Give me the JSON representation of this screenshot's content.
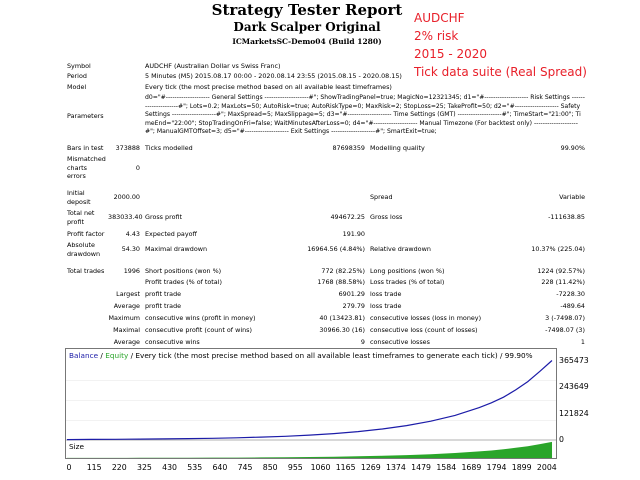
{
  "header": {
    "title": "Strategy Tester Report",
    "subtitle": "Dark Scalper Original",
    "server": "ICMarketsSC-Demo04 (Build 1280)"
  },
  "overlay": [
    "AUDCHF",
    "2% risk",
    "2015 - 2020",
    "Tick data suite (Real Spread)"
  ],
  "info": {
    "symbol_label": "Symbol",
    "symbol": "AUDCHF (Australian Dollar vs Swiss Franc)",
    "period_label": "Period",
    "period": "5 Minutes (M5) 2015.08.17 00:00 - 2020.08.14 23:55 (2015.08.15 - 2020.08.15)",
    "model_label": "Model",
    "model": "Every tick (the most precise method based on all available least timeframes)",
    "parameters_label": "Parameters",
    "parameters": "d0=\"#-------------------- General Settings --------------------#\"; ShowTradingPanel=true; MagicNo=12321345; d1=\"#-------------------- Risk Settings ---------------------#\"; Lots=0.2; MaxLots=50; AutoRisk=true; AutoRiskType=0; MaxRisk=2; StopLoss=25; TakeProfit=50; d2=\"#-------------------- Safety Settings --------------------#\"; MaxSpread=5; MaxSlippage=5; d3=\"#-------------------- Time Settings (GMT) --------------------#\"; TimeStart=\"21:00\"; TimeEnd=\"22:00\"; StopTradingOnFri=false; WaitMinutesAfterLoss=0; d4=\"#-------------------- Manual Timezone (For backtest only) --------------------#\"; ManualGMTOffset=3; d5=\"#-------------------- Exit Settings --------------------#\"; SmartExit=true;",
    "bars_label": "Bars in test",
    "bars": "373888",
    "ticks_label": "Ticks modelled",
    "ticks": "87698359",
    "quality_label": "Modelling quality",
    "quality": "99.90%",
    "mismatch_label": "Mismatched charts errors",
    "mismatch": "0",
    "deposit_label": "Initial deposit",
    "deposit": "2000.00",
    "spread_label": "Spread",
    "spread": "Variable"
  },
  "stats": {
    "net_profit_label": "Total net profit",
    "net_profit": "383033.40",
    "gross_profit_label": "Gross profit",
    "gross_profit": "494672.25",
    "gross_loss_label": "Gross loss",
    "gross_loss": "-111638.85",
    "profit_factor_label": "Profit factor",
    "profit_factor": "4.43",
    "expected_payoff_label": "Expected payoff",
    "expected_payoff": "191.90",
    "abs_dd_label": "Absolute drawdown",
    "abs_dd": "54.30",
    "max_dd_label": "Maximal drawdown",
    "max_dd": "16964.56 (4.84%)",
    "rel_dd_label": "Relative drawdown",
    "rel_dd": "10.37% (225.04)",
    "total_trades_label": "Total trades",
    "total_trades": "1996",
    "short_label": "Short positions (won %)",
    "short": "772 (82.25%)",
    "long_label": "Long positions (won %)",
    "long": "1224 (92.57%)",
    "profit_trades_label": "Profit trades (% of total)",
    "profit_trades": "1768 (88.58%)",
    "loss_trades_label": "Loss trades (% of total)",
    "loss_trades": "228 (11.42%)",
    "largest_label": "Largest",
    "largest_profit_label": "profit trade",
    "largest_profit": "6901.29",
    "largest_loss_label": "loss trade",
    "largest_loss": "-7228.30",
    "average_label": "Average",
    "avg_profit_label": "profit trade",
    "avg_profit": "279.79",
    "avg_loss_label": "loss trade",
    "avg_loss": "-489.64",
    "maximum_label": "Maximum",
    "max_cw_label": "consecutive wins (profit in money)",
    "max_cw": "40 (13423.81)",
    "max_cl_label": "consecutive losses (loss in money)",
    "max_cl": "3 (-7498.07)",
    "maximal_label": "Maximal",
    "mxl_cp_label": "consecutive profit (count of wins)",
    "mxl_cp": "30966.30 (16)",
    "mxl_cl_label": "consecutive loss (count of losses)",
    "mxl_cl": "-7498.07 (3)",
    "average2_label": "Average",
    "avg_cw_label": "consecutive wins",
    "avg_cw": "9",
    "avg_cl_label": "consecutive losses",
    "avg_cl": "1"
  },
  "chart_data": {
    "type": "line",
    "title": "Balance / Equity / Every tick (the most precise method based on all available least timeframes to generate each tick) / 99.90%",
    "legend_balance": "Balance",
    "legend_equity": "Equity",
    "legend_rest": " / Every tick (the most precise method based on all available least timeframes to generate each tick) / 99.90%",
    "size_label": "Size",
    "ylim": [
      0,
      365473
    ],
    "yticks": [
      "365473",
      "243649",
      "121824",
      "0"
    ],
    "xticks": [
      "0",
      "115",
      "220",
      "325",
      "430",
      "535",
      "640",
      "745",
      "850",
      "955",
      "1060",
      "1165",
      "1269",
      "1374",
      "1479",
      "1584",
      "1689",
      "1794",
      "1899",
      "2004"
    ],
    "series": [
      {
        "name": "Balance",
        "color": "#1c1ca8",
        "x": [
          0,
          100,
          200,
          300,
          400,
          500,
          600,
          700,
          800,
          900,
          1000,
          1100,
          1200,
          1300,
          1400,
          1500,
          1600,
          1700,
          1750,
          1800,
          1850,
          1900,
          1950,
          2000
        ],
        "y": [
          2000,
          2600,
          3300,
          4200,
          5300,
          6500,
          8000,
          10200,
          13200,
          17300,
          22600,
          29600,
          38800,
          50800,
          66500,
          87000,
          114000,
          150000,
          172000,
          198000,
          232000,
          270000,
          318000,
          368000
        ]
      }
    ],
    "size_color": "#2aa52a"
  }
}
